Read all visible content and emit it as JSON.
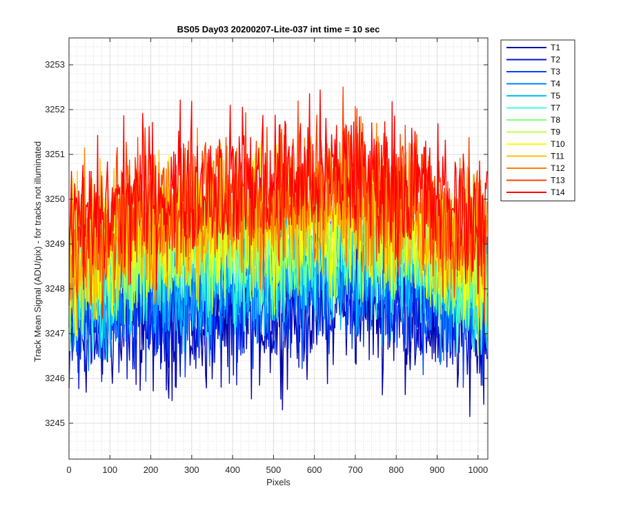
{
  "chart_data": {
    "type": "line",
    "title": "BS05 Day03 20200207-Lite-037 int time = 10 sec",
    "xlabel": "Pixels",
    "ylabel": "Track Mean Signal (ADU/pix) - for tracks not illuminated",
    "xlim": [
      0,
      1024
    ],
    "ylim": [
      3244.2,
      3253.6
    ],
    "x_ticks": [
      0,
      100,
      200,
      300,
      400,
      500,
      600,
      700,
      800,
      900,
      1000
    ],
    "y_ticks": [
      3245,
      3246,
      3247,
      3248,
      3249,
      3250,
      3251,
      3252,
      3253
    ],
    "grid": true,
    "minor_grid": true,
    "legend_position": "outside-right",
    "series": [
      {
        "name": "T1",
        "color": "#0000a8",
        "mean": [
          [
            0,
            3247.0
          ],
          [
            150,
            3247.3
          ],
          [
            300,
            3247.2
          ],
          [
            500,
            3247.4
          ],
          [
            700,
            3247.7
          ],
          [
            850,
            3247.4
          ],
          [
            1023,
            3247.0
          ]
        ],
        "spread": 0.75
      },
      {
        "name": "T2",
        "color": "#0010d0",
        "mean": [
          [
            0,
            3247.2
          ],
          [
            150,
            3247.5
          ],
          [
            300,
            3247.5
          ],
          [
            500,
            3247.7
          ],
          [
            700,
            3248.0
          ],
          [
            850,
            3247.7
          ],
          [
            1023,
            3247.2
          ]
        ],
        "spread": 0.7
      },
      {
        "name": "T3",
        "color": "#0040ff",
        "mean": [
          [
            0,
            3247.4
          ],
          [
            150,
            3247.7
          ],
          [
            300,
            3247.7
          ],
          [
            500,
            3247.9
          ],
          [
            700,
            3248.2
          ],
          [
            850,
            3247.9
          ],
          [
            1023,
            3247.4
          ]
        ],
        "spread": 0.7
      },
      {
        "name": "T4",
        "color": "#0080ff",
        "mean": [
          [
            0,
            3247.5
          ],
          [
            150,
            3248.0
          ],
          [
            300,
            3248.0
          ],
          [
            500,
            3248.2
          ],
          [
            700,
            3248.4
          ],
          [
            850,
            3248.1
          ],
          [
            1023,
            3247.6
          ]
        ],
        "spread": 0.7
      },
      {
        "name": "T5",
        "color": "#00c0ff",
        "mean": [
          [
            0,
            3247.7
          ],
          [
            150,
            3248.2
          ],
          [
            300,
            3248.3
          ],
          [
            500,
            3248.4
          ],
          [
            700,
            3248.7
          ],
          [
            850,
            3248.3
          ],
          [
            1023,
            3247.8
          ]
        ],
        "spread": 0.7
      },
      {
        "name": "T7",
        "color": "#40ffd0",
        "mean": [
          [
            0,
            3247.9
          ],
          [
            150,
            3248.5
          ],
          [
            300,
            3248.6
          ],
          [
            500,
            3248.7
          ],
          [
            700,
            3249.0
          ],
          [
            850,
            3248.6
          ],
          [
            1023,
            3248.0
          ]
        ],
        "spread": 0.7
      },
      {
        "name": "T8",
        "color": "#80ff80",
        "mean": [
          [
            0,
            3248.1
          ],
          [
            150,
            3248.7
          ],
          [
            300,
            3248.9
          ],
          [
            500,
            3249.0
          ],
          [
            700,
            3249.2
          ],
          [
            850,
            3248.8
          ],
          [
            1023,
            3248.2
          ]
        ],
        "spread": 0.7
      },
      {
        "name": "T9",
        "color": "#c0ff40",
        "mean": [
          [
            0,
            3248.2
          ],
          [
            150,
            3248.9
          ],
          [
            300,
            3249.1
          ],
          [
            500,
            3249.2
          ],
          [
            700,
            3249.5
          ],
          [
            850,
            3249.0
          ],
          [
            1023,
            3248.4
          ]
        ],
        "spread": 0.75
      },
      {
        "name": "T10",
        "color": "#ffff00",
        "mean": [
          [
            0,
            3248.4
          ],
          [
            150,
            3249.1
          ],
          [
            300,
            3249.4
          ],
          [
            500,
            3249.5
          ],
          [
            700,
            3249.7
          ],
          [
            850,
            3249.2
          ],
          [
            1023,
            3248.6
          ]
        ],
        "spread": 0.75
      },
      {
        "name": "T11",
        "color": "#ffc000",
        "mean": [
          [
            0,
            3248.6
          ],
          [
            150,
            3249.3
          ],
          [
            300,
            3249.6
          ],
          [
            500,
            3249.7
          ],
          [
            700,
            3249.9
          ],
          [
            850,
            3249.4
          ],
          [
            1023,
            3248.8
          ]
        ],
        "spread": 0.75
      },
      {
        "name": "T12",
        "color": "#ff8000",
        "mean": [
          [
            0,
            3248.8
          ],
          [
            150,
            3249.5
          ],
          [
            300,
            3249.8
          ],
          [
            500,
            3249.9
          ],
          [
            700,
            3250.1
          ],
          [
            850,
            3249.7
          ],
          [
            1023,
            3249.0
          ]
        ],
        "spread": 0.75
      },
      {
        "name": "T13",
        "color": "#ff4000",
        "mean": [
          [
            0,
            3249.0
          ],
          [
            150,
            3249.8
          ],
          [
            300,
            3250.1
          ],
          [
            500,
            3250.2
          ],
          [
            700,
            3250.4
          ],
          [
            850,
            3250.0
          ],
          [
            1023,
            3249.2
          ]
        ],
        "spread": 0.8
      },
      {
        "name": "T14",
        "color": "#ff0000",
        "mean": [
          [
            0,
            3249.2
          ],
          [
            150,
            3250.0
          ],
          [
            300,
            3250.3
          ],
          [
            500,
            3250.4
          ],
          [
            700,
            3250.6
          ],
          [
            850,
            3250.2
          ],
          [
            1023,
            3249.4
          ]
        ],
        "spread": 0.8
      }
    ]
  }
}
